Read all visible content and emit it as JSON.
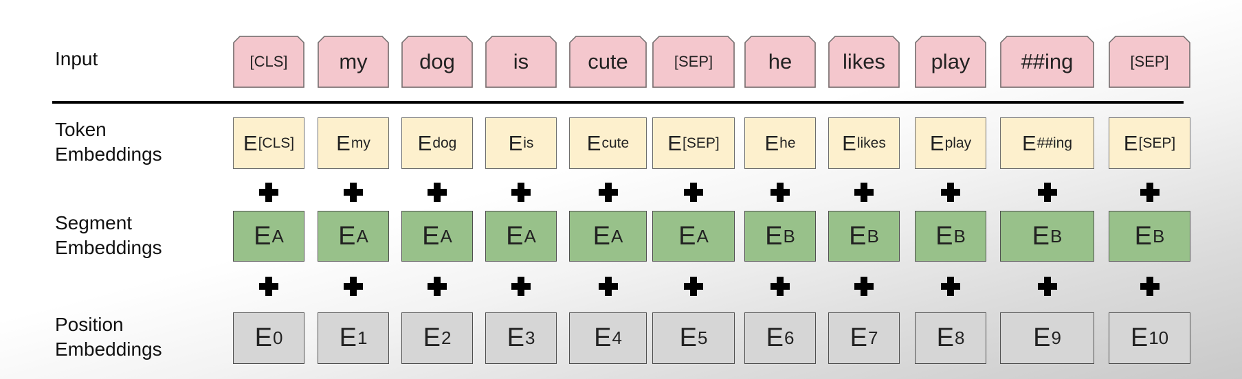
{
  "rows": {
    "input": {
      "label_line1": "Input",
      "label_line2": ""
    },
    "token": {
      "label_line1": "Token",
      "label_line2": "Embeddings"
    },
    "segment": {
      "label_line1": "Segment",
      "label_line2": "Embeddings"
    },
    "position": {
      "label_line1": "Position",
      "label_line2": "Embeddings"
    }
  },
  "tokens": [
    {
      "input": "[CLS]",
      "small": true,
      "token_base": "E",
      "token_sub": "[CLS]",
      "seg_base": "E",
      "seg_sub": "A",
      "pos_base": "E",
      "pos_sub": "0"
    },
    {
      "input": "my",
      "small": false,
      "token_base": "E",
      "token_sub": "my",
      "seg_base": "E",
      "seg_sub": "A",
      "pos_base": "E",
      "pos_sub": "1"
    },
    {
      "input": "dog",
      "small": false,
      "token_base": "E",
      "token_sub": "dog",
      "seg_base": "E",
      "seg_sub": "A",
      "pos_base": "E",
      "pos_sub": "2"
    },
    {
      "input": "is",
      "small": false,
      "token_base": "E",
      "token_sub": "is",
      "seg_base": "E",
      "seg_sub": "A",
      "pos_base": "E",
      "pos_sub": "3"
    },
    {
      "input": "cute",
      "small": false,
      "token_base": "E",
      "token_sub": "cute",
      "seg_base": "E",
      "seg_sub": "A",
      "pos_base": "E",
      "pos_sub": "4"
    },
    {
      "input": "[SEP]",
      "small": true,
      "token_base": "E",
      "token_sub": "[SEP]",
      "seg_base": "E",
      "seg_sub": "A",
      "pos_base": "E",
      "pos_sub": "5"
    },
    {
      "input": "he",
      "small": false,
      "token_base": "E",
      "token_sub": "he",
      "seg_base": "E",
      "seg_sub": "B",
      "pos_base": "E",
      "pos_sub": "6"
    },
    {
      "input": "likes",
      "small": false,
      "token_base": "E",
      "token_sub": "likes",
      "seg_base": "E",
      "seg_sub": "B",
      "pos_base": "E",
      "pos_sub": "7"
    },
    {
      "input": "play",
      "small": false,
      "token_base": "E",
      "token_sub": "play",
      "seg_base": "E",
      "seg_sub": "B",
      "pos_base": "E",
      "pos_sub": "8"
    },
    {
      "input": "##ing",
      "small": false,
      "token_base": "E",
      "token_sub": "##ing",
      "seg_base": "E",
      "seg_sub": "B",
      "pos_base": "E",
      "pos_sub": "9"
    },
    {
      "input": "[SEP]",
      "small": true,
      "token_base": "E",
      "token_sub": "[SEP]",
      "seg_base": "E",
      "seg_sub": "B",
      "pos_base": "E",
      "pos_sub": "10"
    }
  ],
  "colors": {
    "input_fill": "#f4c7cd",
    "token_fill": "#fdf0cd",
    "segment_fill": "#98c18a",
    "position_fill": "#d6d6d6"
  }
}
